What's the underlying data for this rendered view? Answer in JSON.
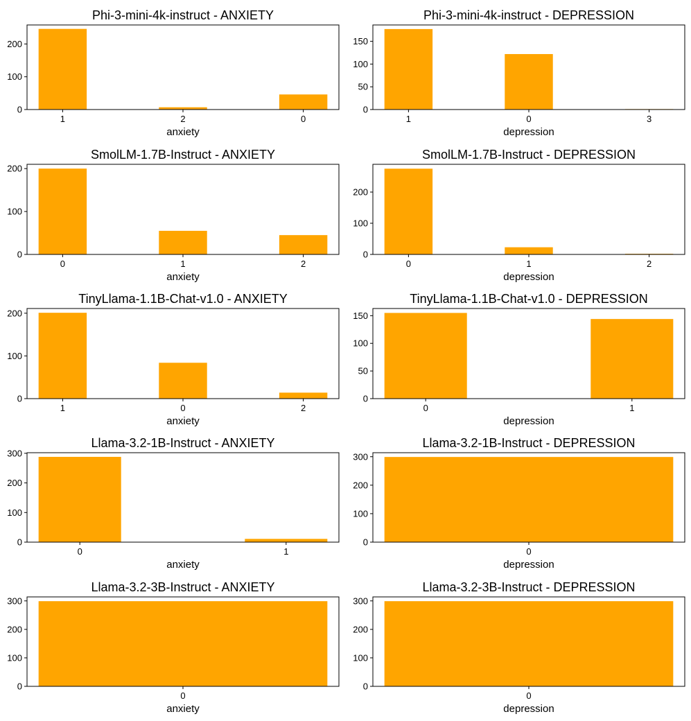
{
  "bar_color": "#ffa500",
  "chart_data": [
    {
      "type": "bar",
      "title": "Phi-3-mini-4k-instruct - ANXIETY",
      "xlabel": "anxiety",
      "ylabel": "",
      "categories": [
        "1",
        "2",
        "0"
      ],
      "values": [
        246,
        7,
        46
      ],
      "ylim": [
        0,
        258
      ],
      "yticks": [
        0,
        100,
        200
      ],
      "ytick_labels": [
        "0",
        "100",
        "200"
      ]
    },
    {
      "type": "bar",
      "title": "Phi-3-mini-4k-instruct - DEPRESSION",
      "xlabel": "depression",
      "ylabel": "",
      "categories": [
        "1",
        "0",
        "3"
      ],
      "values": [
        177,
        122,
        1
      ],
      "ylim": [
        0,
        186
      ],
      "yticks": [
        0,
        50,
        100,
        150
      ],
      "ytick_labels": [
        "0",
        "50",
        "100",
        "150"
      ]
    },
    {
      "type": "bar",
      "title": "SmolLM-1.7B-Instruct - ANXIETY",
      "xlabel": "anxiety",
      "ylabel": "",
      "categories": [
        "0",
        "1",
        "2"
      ],
      "values": [
        200,
        55,
        45
      ],
      "ylim": [
        0,
        210
      ],
      "yticks": [
        0,
        100,
        200
      ],
      "ytick_labels": [
        "0",
        "100",
        "200"
      ]
    },
    {
      "type": "bar",
      "title": "SmolLM-1.7B-Instruct - DEPRESSION",
      "xlabel": "depression",
      "ylabel": "",
      "categories": [
        "0",
        "1",
        "2"
      ],
      "values": [
        275,
        23,
        2
      ],
      "ylim": [
        0,
        289
      ],
      "yticks": [
        0,
        100,
        200
      ],
      "ytick_labels": [
        "0",
        "100",
        "200"
      ]
    },
    {
      "type": "bar",
      "title": "TinyLlama-1.1B-Chat-v1.0 - ANXIETY",
      "xlabel": "anxiety",
      "ylabel": "",
      "categories": [
        "1",
        "0",
        "2"
      ],
      "values": [
        201,
        84,
        14
      ],
      "ylim": [
        0,
        211
      ],
      "yticks": [
        0,
        100,
        200
      ],
      "ytick_labels": [
        "0",
        "100",
        "200"
      ]
    },
    {
      "type": "bar",
      "title": "TinyLlama-1.1B-Chat-v1.0 - DEPRESSION",
      "xlabel": "depression",
      "ylabel": "",
      "categories": [
        "0",
        "1"
      ],
      "values": [
        155,
        144
      ],
      "ylim": [
        0,
        163
      ],
      "yticks": [
        0,
        50,
        100,
        150
      ],
      "ytick_labels": [
        "0",
        "50",
        "100",
        "150"
      ]
    },
    {
      "type": "bar",
      "title": "Llama-3.2-1B-Instruct - ANXIETY",
      "xlabel": "anxiety",
      "ylabel": "",
      "categories": [
        "0",
        "1"
      ],
      "values": [
        288,
        11
      ],
      "ylim": [
        0,
        302
      ],
      "yticks": [
        0,
        100,
        200,
        300
      ],
      "ytick_labels": [
        "0",
        "100",
        "200",
        "300"
      ]
    },
    {
      "type": "bar",
      "title": "Llama-3.2-1B-Instruct - DEPRESSION",
      "xlabel": "depression",
      "ylabel": "",
      "categories": [
        "0"
      ],
      "values": [
        299
      ],
      "ylim": [
        0,
        314
      ],
      "yticks": [
        0,
        100,
        200,
        300
      ],
      "ytick_labels": [
        "0",
        "100",
        "200",
        "300"
      ]
    },
    {
      "type": "bar",
      "title": "Llama-3.2-3B-Instruct - ANXIETY",
      "xlabel": "anxiety",
      "ylabel": "",
      "categories": [
        "0"
      ],
      "values": [
        299
      ],
      "ylim": [
        0,
        314
      ],
      "yticks": [
        0,
        100,
        200,
        300
      ],
      "ytick_labels": [
        "0",
        "100",
        "200",
        "300"
      ]
    },
    {
      "type": "bar",
      "title": "Llama-3.2-3B-Instruct - DEPRESSION",
      "xlabel": "depression",
      "ylabel": "",
      "categories": [
        "0"
      ],
      "values": [
        299
      ],
      "ylim": [
        0,
        314
      ],
      "yticks": [
        0,
        100,
        200,
        300
      ],
      "ytick_labels": [
        "0",
        "100",
        "200",
        "300"
      ]
    }
  ]
}
